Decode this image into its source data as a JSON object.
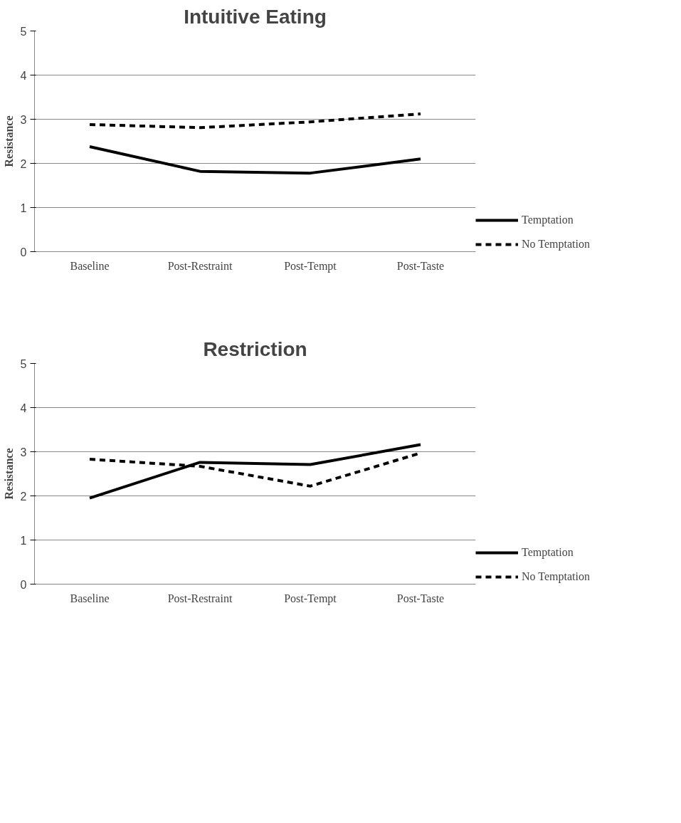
{
  "chart_data": [
    {
      "type": "line",
      "title": "Intuitive Eating",
      "ylabel": "Resistance",
      "categories": [
        "Baseline",
        "Post-Restraint",
        "Post-Tempt",
        "Post-Taste"
      ],
      "series": [
        {
          "name": "Temptation",
          "color": "#000000",
          "line_style": "solid",
          "values": [
            2.38,
            1.82,
            1.78,
            2.1
          ]
        },
        {
          "name": "No Temptation",
          "color": "#000000",
          "line_style": "dashed",
          "values": [
            2.88,
            2.81,
            2.94,
            3.12
          ]
        }
      ],
      "ylim": [
        0,
        5
      ],
      "yticks": [
        0,
        1,
        2,
        3,
        4,
        5
      ],
      "grid": "y",
      "legend": "right"
    },
    {
      "type": "line",
      "title": "Restriction",
      "ylabel": "Resistance",
      "categories": [
        "Baseline",
        "Post-Restraint",
        "Post-Tempt",
        "Post-Taste"
      ],
      "series": [
        {
          "name": "Temptation",
          "color": "#000000",
          "line_style": "solid",
          "values": [
            1.95,
            2.76,
            2.71,
            3.16
          ]
        },
        {
          "name": "No Temptation",
          "color": "#000000",
          "line_style": "dashed",
          "values": [
            2.83,
            2.67,
            2.22,
            2.97
          ]
        }
      ],
      "ylim": [
        0,
        5
      ],
      "yticks": [
        0,
        1,
        2,
        3,
        4,
        5
      ],
      "grid": "y",
      "legend": "right"
    }
  ]
}
